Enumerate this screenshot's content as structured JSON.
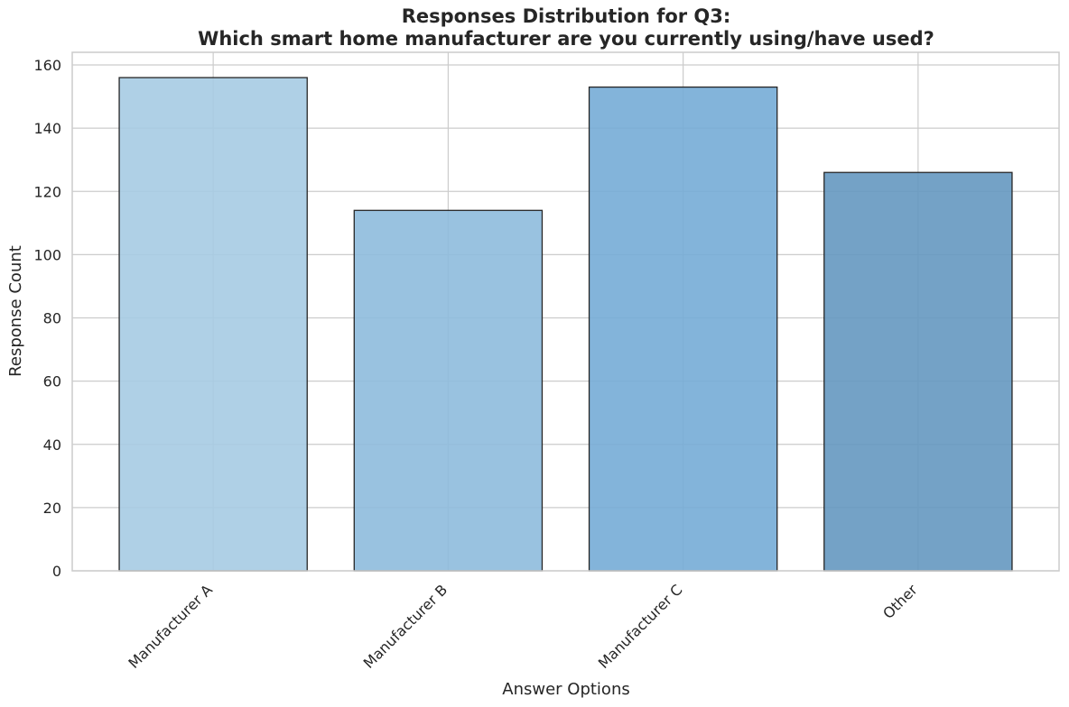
{
  "chart_data": {
    "type": "bar",
    "title_line1": "Responses Distribution for Q3:",
    "title_line2": "Which smart home manufacturer are you currently using/have used?",
    "xlabel": "Answer Options",
    "ylabel": "Response Count",
    "categories": [
      "Manufacturer A",
      "Manufacturer B",
      "Manufacturer C",
      "Other"
    ],
    "values": [
      156,
      114,
      153,
      126
    ],
    "bar_colors": [
      "#a6cbe3",
      "#8ebbdd",
      "#75acd6",
      "#6598c0"
    ],
    "bar_opacity": 0.9,
    "edge_color": "#262626",
    "ylim": [
      0,
      164
    ],
    "yticks": [
      0,
      20,
      40,
      60,
      80,
      100,
      120,
      140,
      160
    ],
    "grid": true,
    "xtick_rotation": -45
  }
}
